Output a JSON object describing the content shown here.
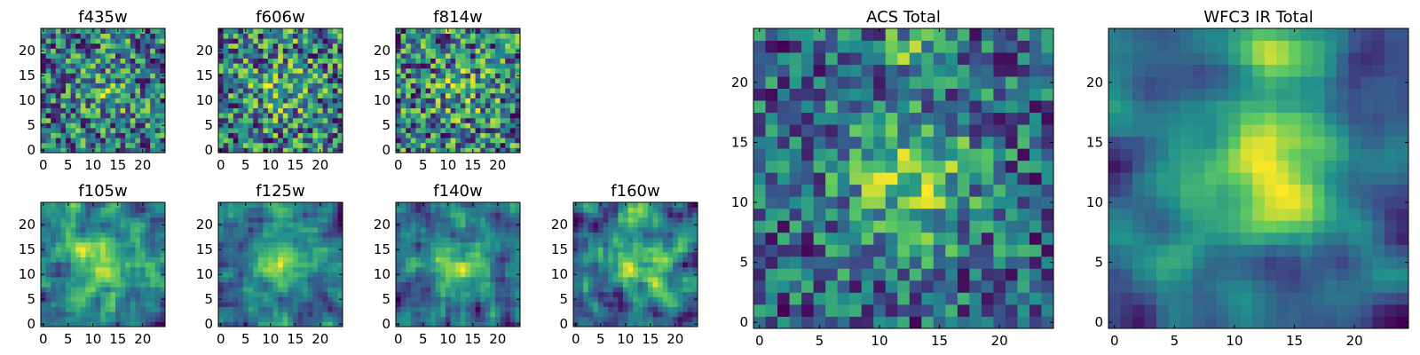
{
  "colormap": "viridis",
  "colors": [
    "#440154",
    "#3b528b",
    "#21918c",
    "#5ec962",
    "#fde725"
  ],
  "chart_data": [
    {
      "type": "heatmap",
      "title": "f435w",
      "grid_size": 25,
      "xlim": [
        0,
        24
      ],
      "ylim": [
        0,
        24
      ],
      "xticks": [
        "0",
        "5",
        "10",
        "15",
        "20"
      ],
      "yticks": [
        "0",
        "5",
        "10",
        "15",
        "20"
      ],
      "seed": 11,
      "noise": 0.9,
      "blob": 0.15,
      "smooth": 0
    },
    {
      "type": "heatmap",
      "title": "f606w",
      "grid_size": 25,
      "xlim": [
        0,
        24
      ],
      "ylim": [
        0,
        24
      ],
      "xticks": [
        "0",
        "5",
        "10",
        "15",
        "20"
      ],
      "yticks": [
        "0",
        "5",
        "10",
        "15",
        "20"
      ],
      "seed": 23,
      "noise": 0.9,
      "blob": 0.15,
      "smooth": 0
    },
    {
      "type": "heatmap",
      "title": "f814w",
      "grid_size": 25,
      "xlim": [
        0,
        24
      ],
      "ylim": [
        0,
        24
      ],
      "xticks": [
        "0",
        "5",
        "10",
        "15",
        "20"
      ],
      "yticks": [
        "0",
        "5",
        "10",
        "15",
        "20"
      ],
      "seed": 37,
      "noise": 0.9,
      "blob": 0.12,
      "smooth": 0
    },
    {
      "type": "heatmap",
      "title": "f105w",
      "grid_size": 25,
      "xlim": [
        0,
        24
      ],
      "ylim": [
        0,
        24
      ],
      "xticks": [
        "0",
        "5",
        "10",
        "15",
        "20"
      ],
      "yticks": [
        "0",
        "5",
        "10",
        "15",
        "20"
      ],
      "seed": 41,
      "noise": 0.7,
      "blob": 0.3,
      "smooth": 1
    },
    {
      "type": "heatmap",
      "title": "f125w",
      "grid_size": 25,
      "xlim": [
        0,
        24
      ],
      "ylim": [
        0,
        24
      ],
      "xticks": [
        "0",
        "5",
        "10",
        "15",
        "20"
      ],
      "yticks": [
        "0",
        "5",
        "10",
        "15",
        "20"
      ],
      "seed": 53,
      "noise": 0.7,
      "blob": 0.3,
      "smooth": 1
    },
    {
      "type": "heatmap",
      "title": "f140w",
      "grid_size": 25,
      "xlim": [
        0,
        24
      ],
      "ylim": [
        0,
        24
      ],
      "xticks": [
        "0",
        "5",
        "10",
        "15",
        "20"
      ],
      "yticks": [
        "0",
        "5",
        "10",
        "15",
        "20"
      ],
      "seed": 67,
      "noise": 0.75,
      "blob": 0.3,
      "smooth": 1
    },
    {
      "type": "heatmap",
      "title": "f160w",
      "grid_size": 25,
      "xlim": [
        0,
        24
      ],
      "ylim": [
        0,
        24
      ],
      "xticks": [
        "0",
        "5",
        "10",
        "15",
        "20"
      ],
      "yticks": [
        "0",
        "5",
        "10",
        "15",
        "20"
      ],
      "seed": 79,
      "noise": 0.75,
      "blob": 0.35,
      "smooth": 1
    },
    {
      "type": "heatmap",
      "title": "ACS Total",
      "grid_size": 25,
      "xlim": [
        0,
        24
      ],
      "ylim": [
        0,
        24
      ],
      "xticks": [
        "0",
        "5",
        "10",
        "15",
        "20"
      ],
      "yticks": [
        "0",
        "5",
        "10",
        "15",
        "20"
      ],
      "seed": 97,
      "noise": 0.7,
      "blob": 0.35,
      "smooth": 0
    },
    {
      "type": "heatmap",
      "title": "WFC3 IR Total",
      "grid_size": 25,
      "xlim": [
        0,
        24
      ],
      "ylim": [
        0,
        24
      ],
      "xticks": [
        "0",
        "5",
        "10",
        "15",
        "20"
      ],
      "yticks": [
        "0",
        "5",
        "10",
        "15",
        "20"
      ],
      "seed": 131,
      "noise": 0.55,
      "blob": 0.5,
      "smooth": 2
    }
  ]
}
